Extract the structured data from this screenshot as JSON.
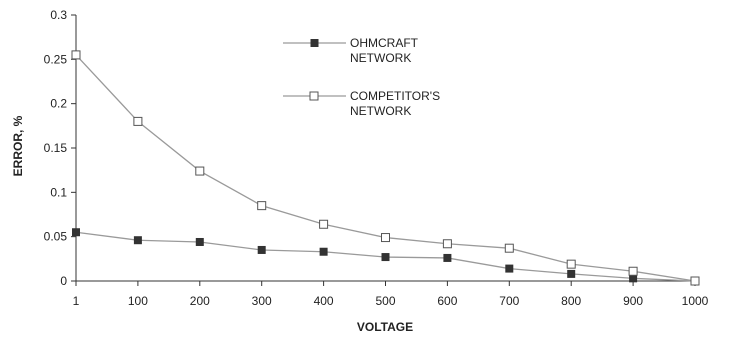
{
  "chart_data": {
    "type": "line",
    "title": "",
    "xlabel": "VOLTAGE",
    "ylabel": "ERROR, %",
    "categories": [
      "1",
      "100",
      "200",
      "300",
      "400",
      "500",
      "600",
      "700",
      "800",
      "900",
      "1000"
    ],
    "yticks": [
      "0",
      "0.05",
      "0.1",
      "0.15",
      "0.2",
      "0.25",
      "0.3"
    ],
    "ylim": [
      0,
      0.3
    ],
    "grid": false,
    "legend": "top-center",
    "series": [
      {
        "name_lines": [
          "OHMCRAFT",
          "NETWORK"
        ],
        "marker": "filled-square",
        "values": [
          0.055,
          0.046,
          0.044,
          0.035,
          0.033,
          0.027,
          0.026,
          0.014,
          0.008,
          0.003,
          0.0
        ]
      },
      {
        "name_lines": [
          "COMPETITOR'S",
          "NETWORK"
        ],
        "marker": "open-square",
        "values": [
          0.255,
          0.18,
          0.124,
          0.085,
          0.064,
          0.049,
          0.042,
          0.037,
          0.019,
          0.011,
          0.0
        ]
      }
    ],
    "colors": {
      "line": "#9a9a9a",
      "axis": "#333333",
      "marker_fill": "#333333",
      "open_fill": "#ffffff"
    }
  }
}
